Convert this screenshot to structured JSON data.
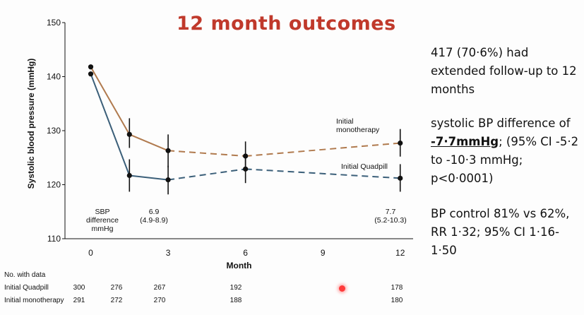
{
  "slide": {
    "title": "12 month outcomes",
    "side_text": {
      "p1": "417 (70·6%) had extended follow-up to 12 months",
      "p2_prefix": "systolic BP difference of ",
      "p2_bold": "-7·7mmHg",
      "p2_suffix": "; (95% CI -5·2 to -10·3 mmHg; p<0·0001)",
      "p3": "BP control 81% vs 62%, RR 1·32; 95% CI 1·16-1·50"
    }
  },
  "colors": {
    "quadpill": "#3b5f79",
    "monotherapy": "#b07a4e",
    "title": "#c0392b"
  },
  "chart_data": {
    "type": "line",
    "title": "",
    "xlabel": "Month",
    "ylabel": "Systolic blood pressure (mmHg)",
    "xlim": [
      -1,
      12.5
    ],
    "ylim": [
      110,
      150
    ],
    "x_ticks": [
      0,
      3,
      6,
      9,
      12
    ],
    "y_ticks": [
      110,
      120,
      130,
      140,
      150
    ],
    "series": [
      {
        "name": "Initial monotherapy",
        "x": [
          0,
          1.5,
          3,
          6,
          12
        ],
        "y": [
          141.8,
          129.3,
          126.3,
          125.3,
          127.7
        ],
        "ci_low": [
          141.8,
          126.8,
          123.2,
          122.7,
          125.2
        ],
        "ci_high": [
          141.8,
          132.3,
          129.3,
          128.0,
          130.3
        ],
        "dashed_from_index": 2
      },
      {
        "name": "Initial Quadpill",
        "x": [
          0,
          1.5,
          3,
          6,
          12
        ],
        "y": [
          140.5,
          121.7,
          120.9,
          122.9,
          121.2
        ],
        "ci_low": [
          140.5,
          118.7,
          118.2,
          120.3,
          118.7
        ],
        "ci_high": [
          140.5,
          124.7,
          123.5,
          125.5,
          123.8
        ],
        "dashed_from_index": 2
      }
    ],
    "annotations": {
      "sbp_label": [
        "SBP",
        "difference",
        "mmHg"
      ],
      "diff_3": [
        "6.9",
        "(4.9-8.9)"
      ],
      "diff_12": [
        "7.7",
        "(5.2-10.3)"
      ],
      "label_mono": [
        "Initial",
        "monotherapy"
      ],
      "label_quad": "Initial Quadpill"
    },
    "table": {
      "header": "No. with data",
      "rows": [
        {
          "label": "Initial Quadpill",
          "values": [
            "300",
            "276",
            "267",
            "192",
            "178"
          ]
        },
        {
          "label": "Initial monotherapy",
          "values": [
            "291",
            "272",
            "270",
            "188",
            "180"
          ]
        }
      ]
    }
  }
}
